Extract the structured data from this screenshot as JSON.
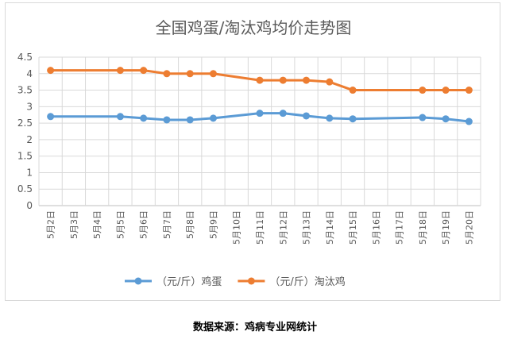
{
  "chart_data": {
    "type": "line",
    "title": "全国鸡蛋/淘汰鸡均价走势图",
    "xlabel": "",
    "ylabel": "",
    "categories": [
      "5月2日",
      "5月3日",
      "5月4日",
      "5月5日",
      "5月6日",
      "5月7日",
      "5月8日",
      "5月9日",
      "5月10日",
      "5月11日",
      "5月12日",
      "5月13日",
      "5月14日",
      "5月15日",
      "5月16日",
      "5月17日",
      "5月18日",
      "5月19日",
      "5月20日"
    ],
    "ylim": [
      0,
      4.5
    ],
    "yticks": [
      "0",
      "0.5",
      "1",
      "1.5",
      "2",
      "2.5",
      "3",
      "3.5",
      "4",
      "4.5"
    ],
    "grid": true,
    "legend_position": "bottom",
    "series": [
      {
        "name": "（元/斤）鸡蛋",
        "color": "#5b9bd5",
        "values": [
          2.7,
          null,
          null,
          2.7,
          2.65,
          2.6,
          2.6,
          2.65,
          null,
          2.8,
          2.8,
          2.72,
          2.65,
          2.63,
          null,
          null,
          2.67,
          2.63,
          2.55
        ]
      },
      {
        "name": "（元/斤）淘汰鸡",
        "color": "#ed7d31",
        "values": [
          4.1,
          null,
          null,
          4.1,
          4.1,
          4.0,
          4.0,
          4.0,
          null,
          3.8,
          3.8,
          3.8,
          3.75,
          3.5,
          null,
          null,
          3.5,
          3.5,
          3.5
        ]
      }
    ]
  },
  "source_note": "数据来源：鸡病专业网统计"
}
